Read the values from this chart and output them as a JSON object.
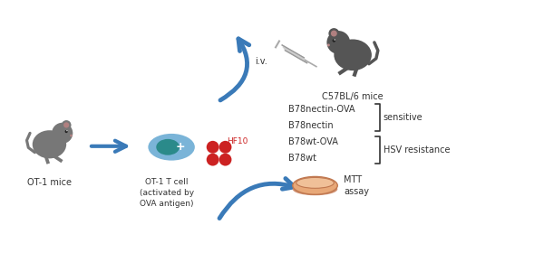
{
  "bg_color": "#ffffff",
  "arrow_color": "#3a7ab8",
  "mouse1_color": "#777777",
  "mouse2_color": "#555555",
  "cell_outer_color": "#7ab4d8",
  "cell_inner_color": "#2a8a8a",
  "red_color": "#cc2222",
  "text_color": "#333333",
  "hf10_label": "HF10",
  "label_ot1_mice": "OT-1 mice",
  "label_ot1_cell": "OT-1 T cell\n(activated by\nOVA antigen)",
  "label_mtt": "MTT\nassay",
  "label_b78wt": "B78wt",
  "label_b78wt_ova": "B78wt-OVA",
  "label_b78nectin": "B78nectin",
  "label_b78nectin_ova": "B78nectin-OVA",
  "label_hsv_resistance": "HSV resistance",
  "label_sensitive": "sensitive",
  "label_iv": "i.v.",
  "label_c57bl": "C57BL/6 mice",
  "figsize": [
    6.0,
    2.8
  ]
}
